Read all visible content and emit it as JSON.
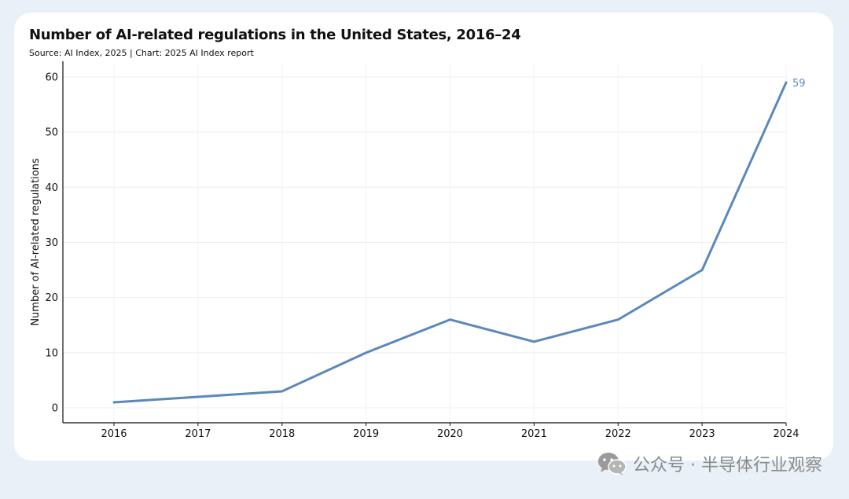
{
  "chart_data": {
    "type": "line",
    "title": "Number of AI-related regulations in the United States, 2016–24",
    "subtitle": "Source: AI Index, 2025 | Chart: 2025 AI Index report",
    "xlabel": "",
    "ylabel": "Number of AI-related regulations",
    "ylim": [
      0,
      60
    ],
    "yticks": [
      0,
      10,
      20,
      30,
      40,
      50,
      60
    ],
    "categories": [
      "2016",
      "2017",
      "2018",
      "2019",
      "2020",
      "2021",
      "2022",
      "2023",
      "2024"
    ],
    "series": [
      {
        "values": [
          1,
          2,
          3,
          10,
          16,
          12,
          16,
          25,
          59
        ],
        "color": "#5b88bb"
      }
    ],
    "end_label": "59",
    "grid": true,
    "legend": "none"
  },
  "watermark": {
    "icon": "wechat-icon",
    "text": "公众号 · 半导体行业观察"
  }
}
